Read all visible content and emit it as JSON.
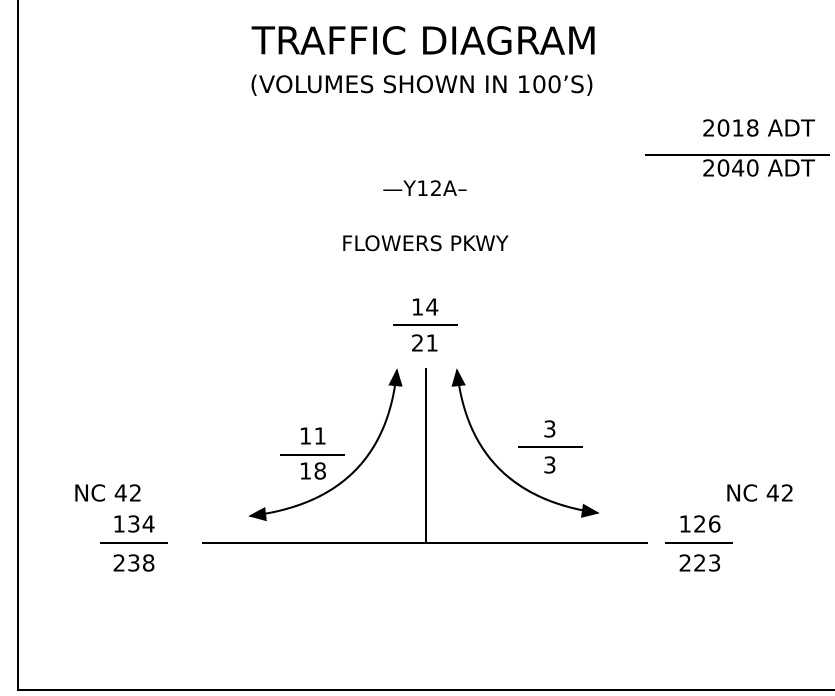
{
  "title": "TRAFFIC DIAGRAM",
  "subtitle": "(VOLUMES SHOWN IN 100’S)",
  "legend": {
    "top": "2018 ADT",
    "bottom": "2040 ADT"
  },
  "road": {
    "route": "—Y12A–",
    "name": "FLOWERS PKWY"
  },
  "volumes": {
    "north": {
      "top": 14,
      "bottom": 21
    },
    "left_turn": {
      "top": 11,
      "bottom": 18
    },
    "right_turn": {
      "top": 3,
      "bottom": 3
    },
    "west": {
      "name": "NC 42",
      "top": 134,
      "bottom": 238
    },
    "east": {
      "name": "NC 42",
      "top": 126,
      "bottom": 223
    }
  }
}
